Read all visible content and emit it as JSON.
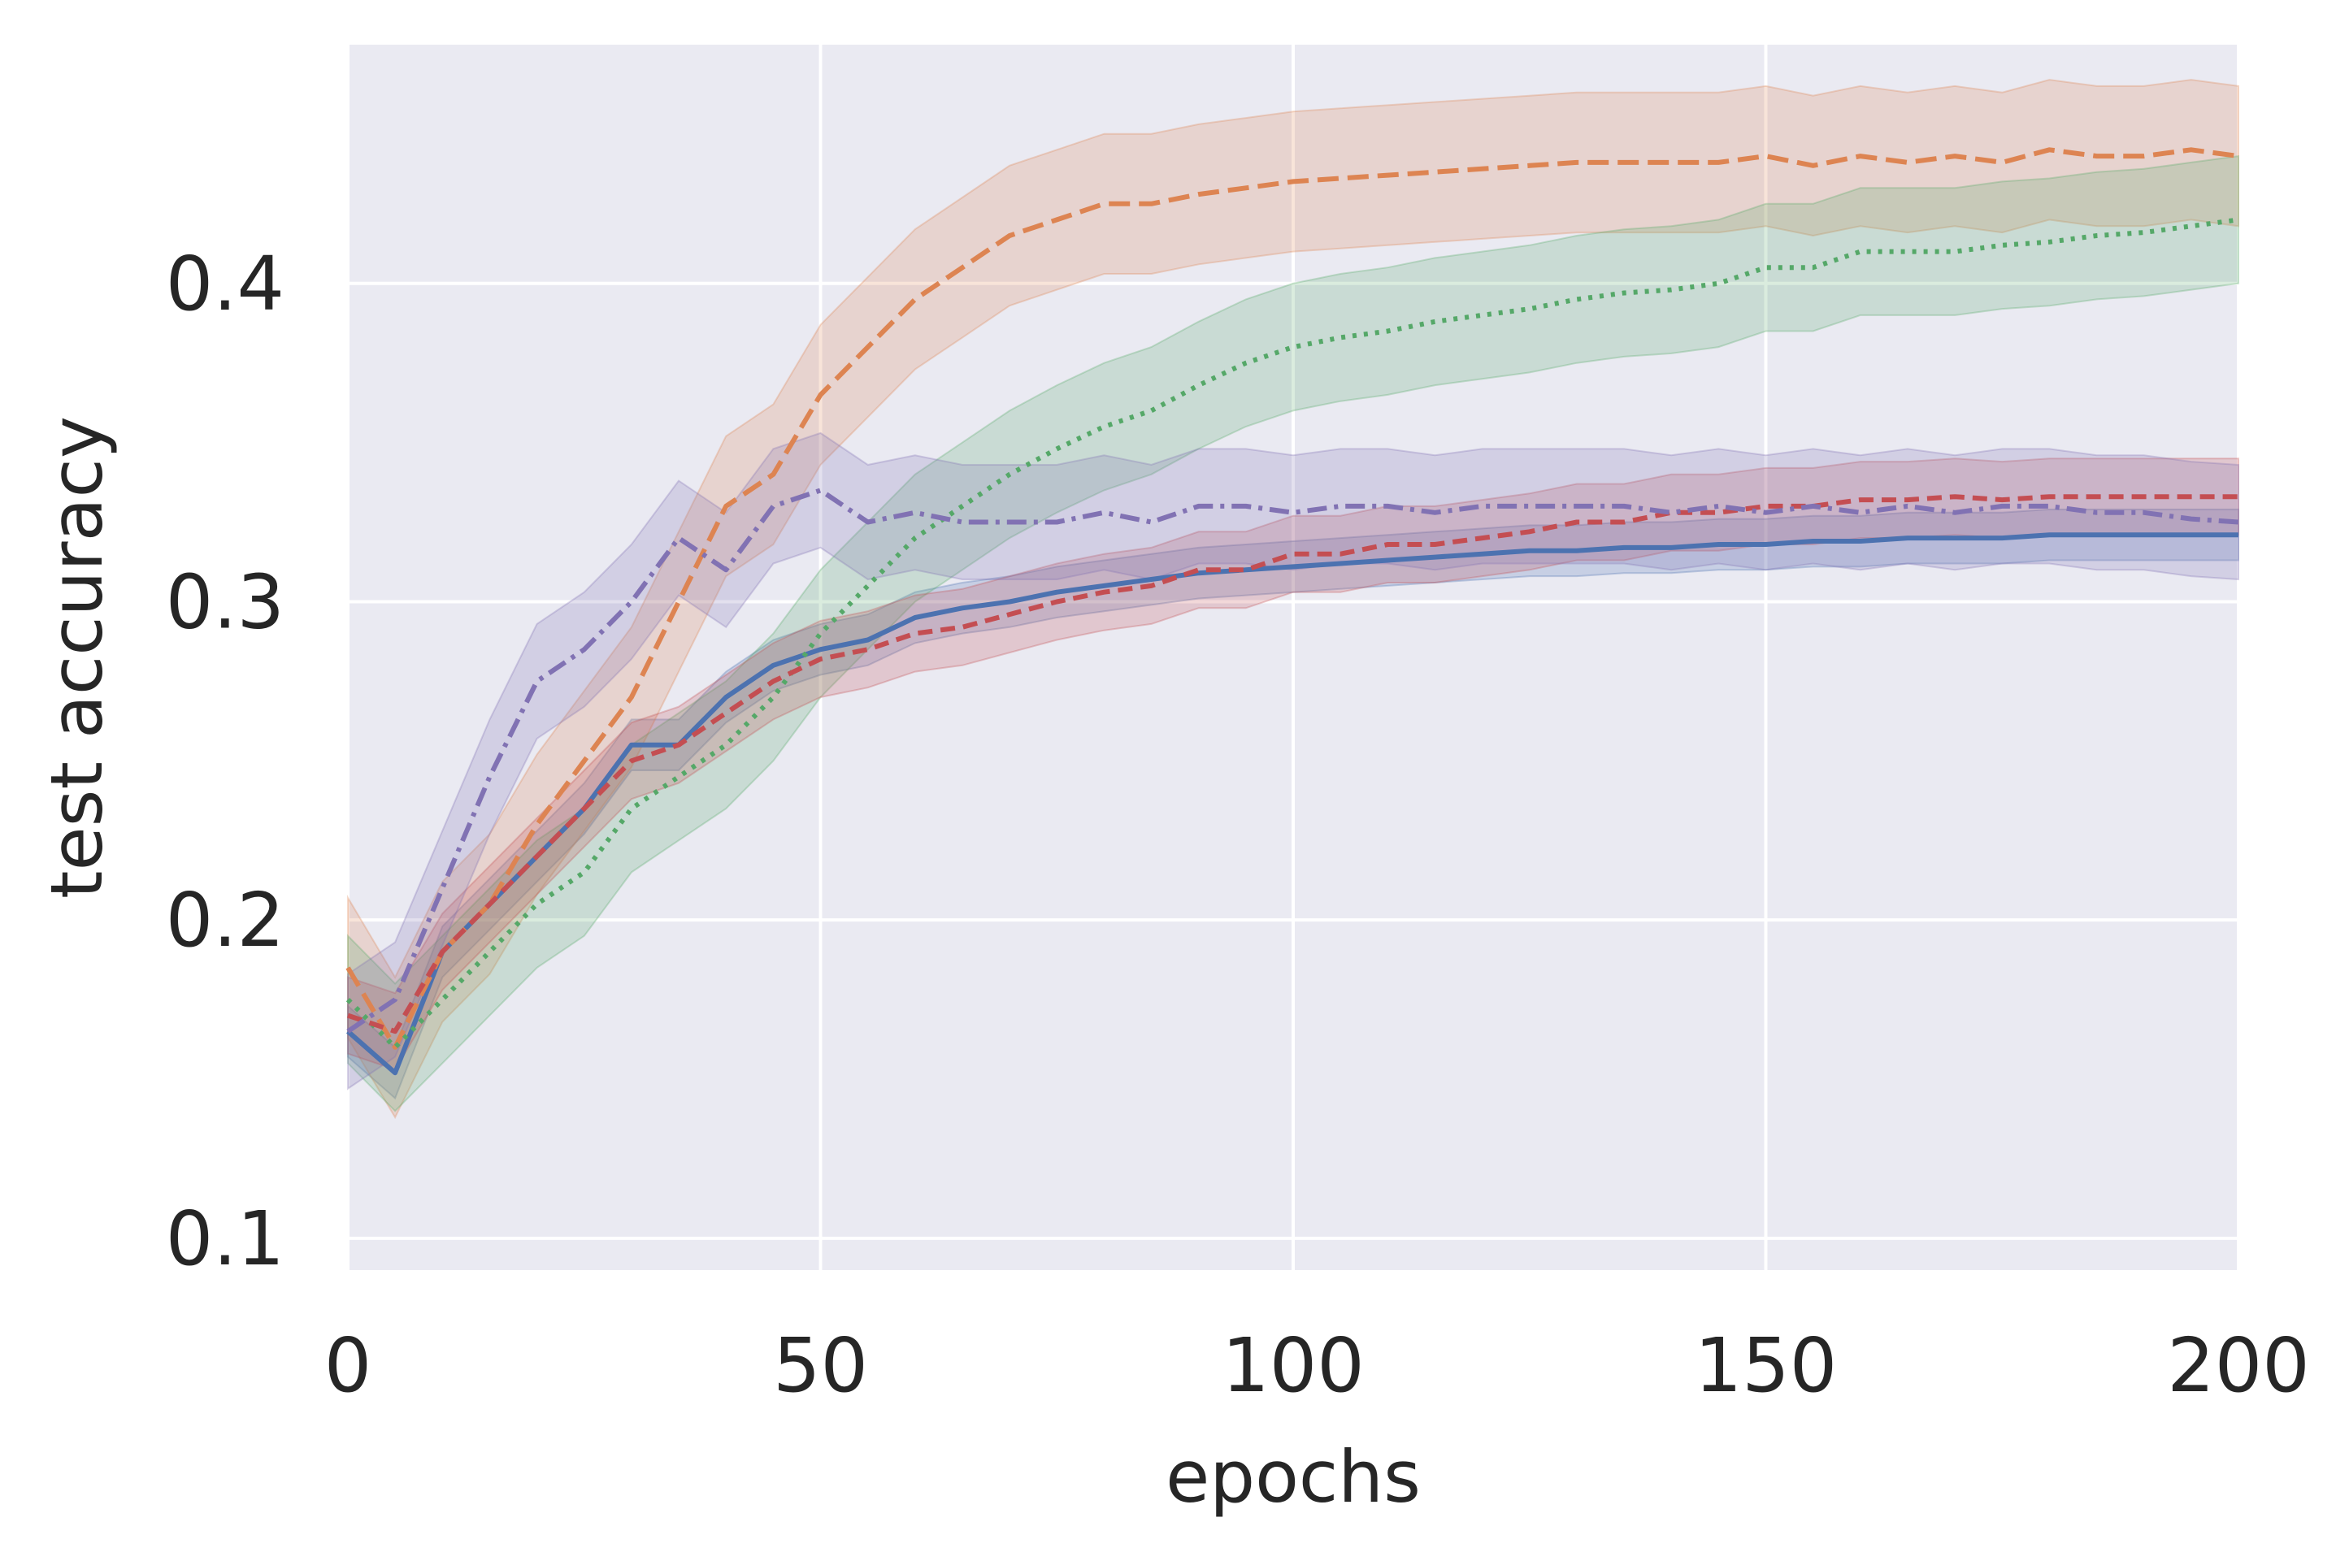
{
  "chart_data": {
    "type": "line",
    "title": "",
    "xlabel": "epochs",
    "ylabel": "test accuracy",
    "xlim": [
      0,
      200
    ],
    "ylim": [
      0.09,
      0.475
    ],
    "xticks": [
      0,
      50,
      100,
      150,
      200
    ],
    "xtick_labels": [
      "0",
      "50",
      "100",
      "150",
      "200"
    ],
    "yticks": [
      0.1,
      0.2,
      0.3,
      0.4
    ],
    "ytick_labels": [
      "0.1",
      "0.2",
      "0.3",
      "0.4"
    ],
    "grid": true,
    "legend": "none",
    "x": [
      0,
      5,
      10,
      15,
      20,
      25,
      30,
      35,
      40,
      45,
      50,
      55,
      60,
      65,
      70,
      75,
      80,
      85,
      90,
      95,
      100,
      105,
      110,
      115,
      120,
      125,
      130,
      135,
      140,
      145,
      150,
      155,
      160,
      165,
      170,
      175,
      180,
      185,
      190,
      195,
      200
    ],
    "series": [
      {
        "name": "blue solid",
        "color": "#4c72b0",
        "dash": "solid",
        "values": [
          0.165,
          0.152,
          0.19,
          0.205,
          0.22,
          0.235,
          0.255,
          0.255,
          0.27,
          0.28,
          0.285,
          0.288,
          0.295,
          0.298,
          0.3,
          0.303,
          0.305,
          0.307,
          0.309,
          0.31,
          0.311,
          0.312,
          0.313,
          0.314,
          0.315,
          0.316,
          0.316,
          0.317,
          0.317,
          0.318,
          0.318,
          0.319,
          0.319,
          0.32,
          0.32,
          0.32,
          0.321,
          0.321,
          0.321,
          0.321,
          0.321
        ],
        "band": 0.008
      },
      {
        "name": "orange dashed",
        "color": "#dd8452",
        "dash": "dashed",
        "values": [
          0.185,
          0.16,
          0.19,
          0.205,
          0.23,
          0.25,
          0.27,
          0.3,
          0.33,
          0.34,
          0.365,
          0.38,
          0.395,
          0.405,
          0.415,
          0.42,
          0.425,
          0.425,
          0.428,
          0.43,
          0.432,
          0.433,
          0.434,
          0.435,
          0.436,
          0.437,
          0.438,
          0.438,
          0.438,
          0.438,
          0.44,
          0.437,
          0.44,
          0.438,
          0.44,
          0.438,
          0.442,
          0.44,
          0.44,
          0.442,
          0.44
        ],
        "band": 0.022
      },
      {
        "name": "green dotted",
        "color": "#55a868",
        "dash": "dotted",
        "values": [
          0.175,
          0.16,
          0.175,
          0.19,
          0.205,
          0.215,
          0.235,
          0.245,
          0.255,
          0.27,
          0.29,
          0.305,
          0.32,
          0.33,
          0.34,
          0.348,
          0.355,
          0.36,
          0.368,
          0.375,
          0.38,
          0.383,
          0.385,
          0.388,
          0.39,
          0.392,
          0.395,
          0.397,
          0.398,
          0.4,
          0.405,
          0.405,
          0.41,
          0.41,
          0.41,
          0.412,
          0.413,
          0.415,
          0.416,
          0.418,
          0.42
        ],
        "band": 0.02
      },
      {
        "name": "red dashed",
        "color": "#c44e52",
        "dash": "dashed-short",
        "values": [
          0.17,
          0.165,
          0.19,
          0.205,
          0.22,
          0.235,
          0.25,
          0.255,
          0.265,
          0.275,
          0.282,
          0.285,
          0.29,
          0.292,
          0.296,
          0.3,
          0.303,
          0.305,
          0.31,
          0.31,
          0.315,
          0.315,
          0.318,
          0.318,
          0.32,
          0.322,
          0.325,
          0.325,
          0.328,
          0.328,
          0.33,
          0.33,
          0.332,
          0.332,
          0.333,
          0.332,
          0.333,
          0.333,
          0.333,
          0.333,
          0.333
        ],
        "band": 0.012
      },
      {
        "name": "purple dash-dot",
        "color": "#8172b3",
        "dash": "dashdot",
        "values": [
          0.165,
          0.175,
          0.21,
          0.245,
          0.275,
          0.285,
          0.3,
          0.32,
          0.31,
          0.33,
          0.335,
          0.325,
          0.328,
          0.325,
          0.325,
          0.325,
          0.328,
          0.325,
          0.33,
          0.33,
          0.328,
          0.33,
          0.33,
          0.328,
          0.33,
          0.33,
          0.33,
          0.33,
          0.328,
          0.33,
          0.328,
          0.33,
          0.328,
          0.33,
          0.328,
          0.33,
          0.33,
          0.328,
          0.328,
          0.326,
          0.325
        ],
        "band": 0.018
      }
    ]
  }
}
